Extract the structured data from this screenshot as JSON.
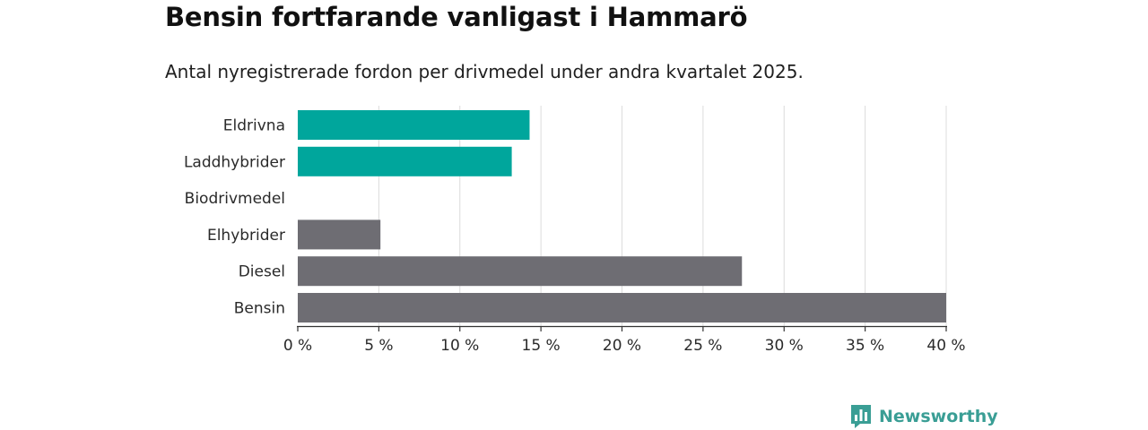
{
  "chart_data": {
    "type": "bar",
    "orientation": "horizontal",
    "title": "Bensin fortfarande vanligast i Hammarö",
    "subtitle": "Antal nyregistrerade fordon per drivmedel under andra kvartalet 2025.",
    "categories": [
      "Eldrivna",
      "Laddhybrider",
      "Biodrivmedel",
      "Elhybrider",
      "Diesel",
      "Bensin"
    ],
    "values": [
      14.3,
      13.2,
      0,
      5.1,
      27.4,
      40.0
    ],
    "colors": [
      "#00a69c",
      "#00a69c",
      "#00a69c",
      "#6e6d73",
      "#6e6d73",
      "#6e6d73"
    ],
    "xlim": [
      0,
      40
    ],
    "xticks": [
      0,
      5,
      10,
      15,
      20,
      25,
      30,
      35,
      40
    ],
    "xtick_labels": [
      "0 %",
      "5 %",
      "10 %",
      "15 %",
      "20 %",
      "25 %",
      "30 %",
      "35 %",
      "40 %"
    ],
    "grid": "vertical",
    "xlabel": "",
    "ylabel": ""
  },
  "branding": {
    "logo_text": "Newsworthy",
    "logo_color": "#3a9e95",
    "logo_icon": "bar-chart-bubble-icon"
  }
}
